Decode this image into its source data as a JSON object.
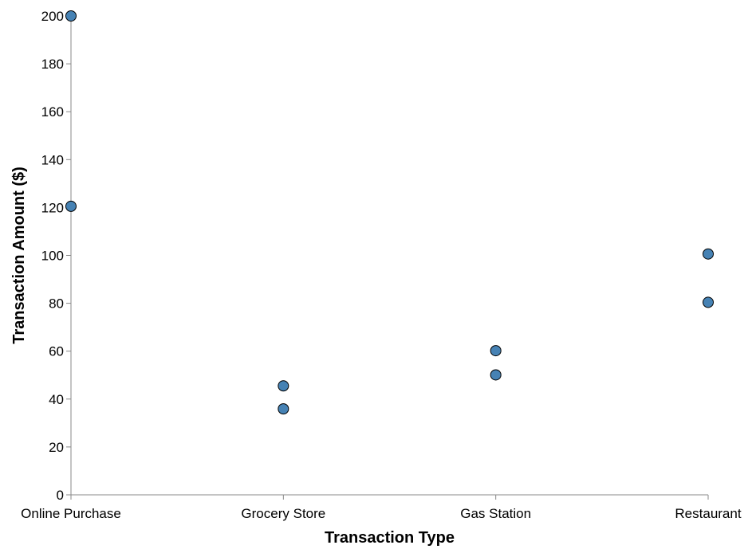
{
  "chart_data": {
    "type": "scatter",
    "title": "",
    "xlabel": "Transaction Type",
    "ylabel": "Transaction Amount ($)",
    "categories": [
      "Online Purchase",
      "Grocery Store",
      "Gas Station",
      "Restaurant"
    ],
    "ylim": [
      0,
      200
    ],
    "yticks": [
      0,
      20,
      40,
      60,
      80,
      100,
      120,
      140,
      160,
      180,
      200
    ],
    "grid": false,
    "legend": "none",
    "point_color": "#4682b4",
    "points": [
      {
        "x": "Online Purchase",
        "y": 200
      },
      {
        "x": "Online Purchase",
        "y": 120.5
      },
      {
        "x": "Grocery Store",
        "y": 45.5
      },
      {
        "x": "Grocery Store",
        "y": 35.9
      },
      {
        "x": "Gas Station",
        "y": 60.2
      },
      {
        "x": "Gas Station",
        "y": 50.1
      },
      {
        "x": "Restaurant",
        "y": 100.6
      },
      {
        "x": "Restaurant",
        "y": 80.4
      }
    ]
  }
}
